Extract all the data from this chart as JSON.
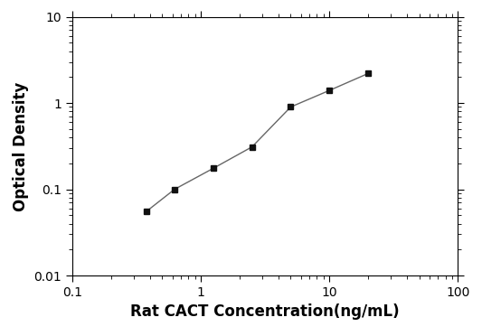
{
  "x": [
    0.375,
    0.625,
    1.25,
    2.5,
    5.0,
    10.0,
    20.0
  ],
  "y": [
    0.055,
    0.1,
    0.175,
    0.31,
    0.9,
    1.4,
    2.2
  ],
  "xlabel": "Rat CACT Concentration(ng/mL)",
  "ylabel": "Optical Density",
  "xlim": [
    0.1,
    100
  ],
  "ylim": [
    0.01,
    10
  ],
  "line_color": "#666666",
  "marker_color": "#111111",
  "marker": "s",
  "marker_size": 5,
  "line_width": 1.0,
  "background_color": "#ffffff",
  "xlabel_fontsize": 12,
  "ylabel_fontsize": 12,
  "tick_fontsize": 10
}
